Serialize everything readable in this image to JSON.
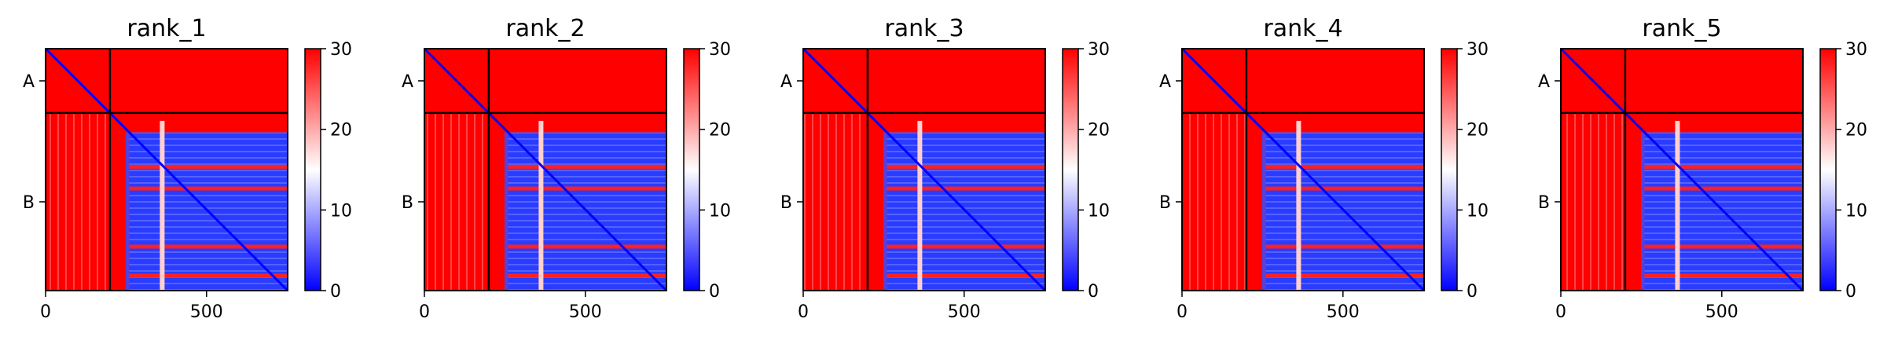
{
  "chart_data": {
    "type": "heatmap",
    "shared": {
      "x_range": [
        0,
        752
      ],
      "x_ticks": [
        0,
        500
      ],
      "y_ticks": [
        {
          "label": "A",
          "position": 100
        },
        {
          "label": "B",
          "position": 476
        }
      ],
      "chain_boundary": 200,
      "colorbar": {
        "range": [
          0,
          30
        ],
        "ticks": [
          0,
          10,
          20,
          30
        ],
        "colors": [
          "#0000ff",
          "#ffffff",
          "#ff0000"
        ]
      }
    },
    "panels": [
      {
        "title": "rank_1"
      },
      {
        "title": "rank_2"
      },
      {
        "title": "rank_3"
      },
      {
        "title": "rank_4"
      },
      {
        "title": "rank_5"
      }
    ]
  }
}
